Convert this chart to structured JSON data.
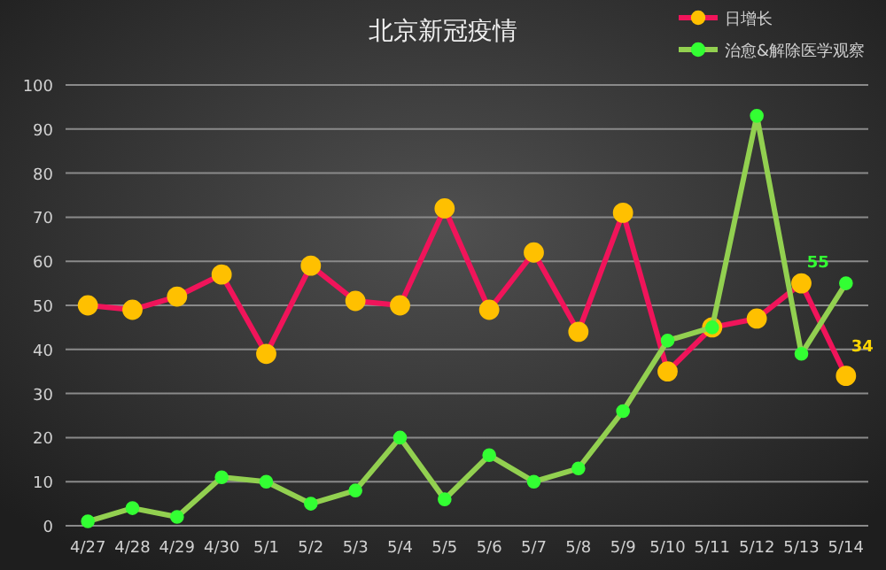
{
  "chart_data": {
    "type": "line",
    "title": "北京新冠疫情",
    "categories": [
      "4/27",
      "4/28",
      "4/29",
      "4/30",
      "5/1",
      "5/2",
      "5/3",
      "5/4",
      "5/5",
      "5/6",
      "5/7",
      "5/8",
      "5/9",
      "5/10",
      "5/11",
      "5/12",
      "5/13",
      "5/14"
    ],
    "series": [
      {
        "name": "日增长",
        "color": "#f0145a",
        "values": [
          50,
          49,
          52,
          57,
          39,
          59,
          51,
          50,
          72,
          49,
          62,
          44,
          71,
          35,
          45,
          47,
          55,
          34
        ],
        "value_labels": [
          null,
          null,
          null,
          null,
          null,
          null,
          null,
          null,
          null,
          null,
          null,
          null,
          null,
          null,
          null,
          null,
          null,
          "34"
        ]
      },
      {
        "name": "治愈&解除医学观察",
        "color": "#92d050",
        "values": [
          1,
          4,
          2,
          11,
          10,
          5,
          8,
          20,
          6,
          16,
          10,
          13,
          26,
          42,
          45,
          93,
          39,
          55
        ],
        "value_labels": [
          null,
          null,
          null,
          null,
          null,
          null,
          null,
          null,
          null,
          null,
          null,
          null,
          null,
          null,
          null,
          null,
          null,
          "55"
        ]
      }
    ],
    "ylim": [
      0,
      100
    ],
    "yticks": [
      0,
      10,
      20,
      30,
      40,
      50,
      60,
      70,
      80,
      90,
      100
    ],
    "grid": "y",
    "legend": "top right",
    "marker": "circle"
  }
}
